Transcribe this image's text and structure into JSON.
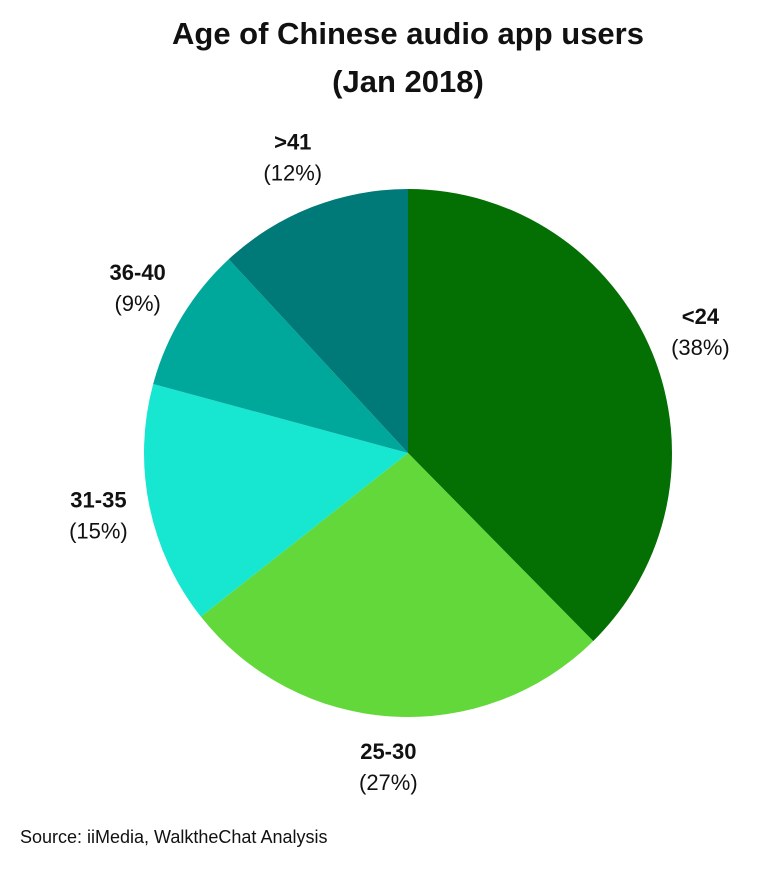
{
  "chart_data": {
    "type": "pie",
    "title": "Age of Chinese audio app users",
    "subtitle": "(Jan 2018)",
    "categories": [
      "<24",
      "25-30",
      "31-35",
      "36-40",
      ">41"
    ],
    "values": [
      38,
      27,
      15,
      9,
      12
    ],
    "value_labels": [
      "(38%)",
      "(27%)",
      "(15%)",
      "(9%)",
      "(12%)"
    ],
    "colors": [
      "#047004",
      "#62d83a",
      "#17e6d0",
      "#00a89c",
      "#007a78"
    ],
    "source": "Source: iiMedia, WalktheChat Analysis"
  }
}
